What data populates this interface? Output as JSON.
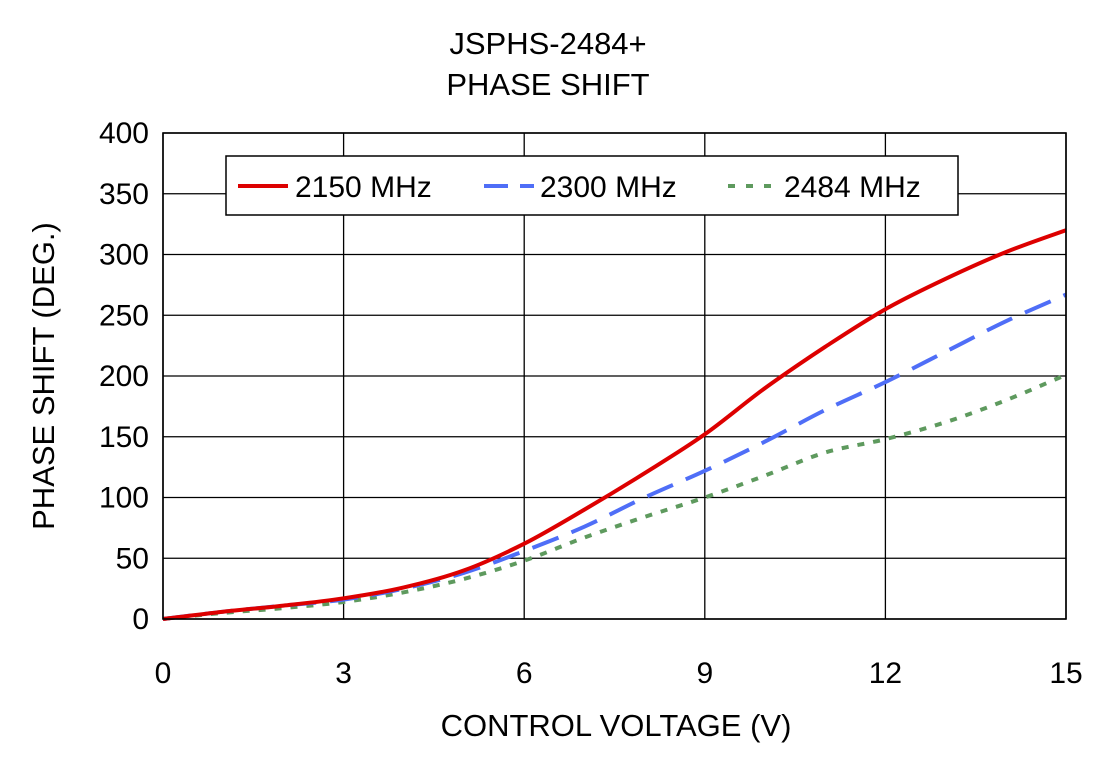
{
  "chart_data": {
    "type": "line",
    "title": "JSPHS-2484+",
    "subtitle": "PHASE SHIFT",
    "xlabel": "CONTROL VOLTAGE (V)",
    "ylabel": "PHASE SHIFT (DEG.)",
    "xlim": [
      0,
      15
    ],
    "ylim": [
      0,
      400
    ],
    "xticks": [
      0,
      3,
      6,
      9,
      12,
      15
    ],
    "yticks": [
      0,
      50,
      100,
      150,
      200,
      250,
      300,
      350,
      400
    ],
    "grid": true,
    "legend_position": "top",
    "series": [
      {
        "name": "2150 MHz",
        "color": "#dd0000",
        "dash": "solid",
        "x": [
          0,
          1,
          2,
          3,
          4,
          5,
          6,
          7,
          8,
          9,
          10,
          11,
          12,
          13,
          14,
          15
        ],
        "y": [
          0,
          6,
          11,
          17,
          26,
          40,
          62,
          90,
          120,
          152,
          190,
          224,
          255,
          280,
          302,
          320
        ]
      },
      {
        "name": "2300 MHz",
        "color": "#4f6ef7",
        "dash": "long-dash",
        "x": [
          0,
          1,
          2,
          3,
          4,
          5,
          6,
          7,
          8,
          9,
          10,
          11,
          12,
          13,
          14,
          15
        ],
        "y": [
          0,
          6,
          11,
          16,
          25,
          38,
          56,
          76,
          100,
          122,
          146,
          172,
          195,
          220,
          245,
          267
        ]
      },
      {
        "name": "2484 MHz",
        "color": "#5e9a5e",
        "dash": "dotted",
        "x": [
          0,
          1,
          2,
          3,
          4,
          5,
          6,
          7,
          8,
          9,
          10,
          11,
          12,
          13,
          14,
          15
        ],
        "y": [
          0,
          5,
          9,
          14,
          22,
          33,
          48,
          67,
          84,
          100,
          118,
          137,
          148,
          162,
          180,
          201
        ]
      }
    ]
  }
}
